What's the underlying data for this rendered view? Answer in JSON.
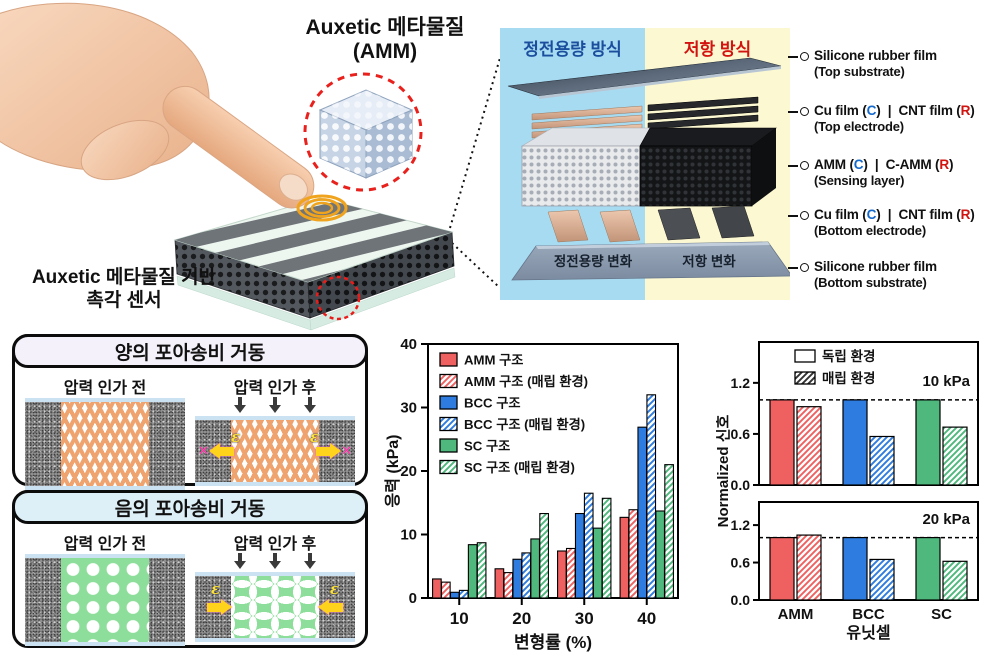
{
  "figure": {
    "hero": {
      "amm_label_line1": "Auxetic 메타물질",
      "amm_label_line2": "(AMM)",
      "caption_line1": "Auxetic 메타물질 기반",
      "caption_line2": "촉각 센서"
    },
    "exploded": {
      "capacitive_header": "정전용량 방식",
      "resistive_header": "저항 방식",
      "capacitive_change_label": "정전용량 변화",
      "resistive_change_label": "저항 변화",
      "capacitive_color": "#1b4f9e",
      "resistive_color": "#d11410",
      "capacitive_bg": "#a7dbf2",
      "resistive_bg": "#fcf8d2",
      "c_marker_color": "#1469cc",
      "r_marker_color": "#d11410",
      "layer_labels": [
        {
          "line1": "Silicone rubber film",
          "line2": "(Top substrate)"
        },
        {
          "line1": "Cu film (C) | CNT film (R)",
          "line2": "(Top electrode)"
        },
        {
          "line1": "AMM (C) | C-AMM (R)",
          "line2": "(Sensing layer)"
        },
        {
          "line1": "Cu film (C) | CNT film (R)",
          "line2": "(Bottom electrode)"
        },
        {
          "line1": "Silicone rubber film",
          "line2": "(Bottom substrate)"
        }
      ]
    },
    "poisson": {
      "panels": [
        {
          "behavior": "positive",
          "title": "양의 포아송비 거동",
          "before_label": "압력 인가 전",
          "after_label": "압력 인가 후",
          "strain_symbol": "ε",
          "x_mark": "✕"
        },
        {
          "behavior": "negative",
          "title": "음의 포아송비 거동",
          "before_label": "압력 인가 전",
          "after_label": "압력 인가 후",
          "strain_symbol": "ε"
        }
      ]
    }
  },
  "chart_data": [
    {
      "type": "bar",
      "title": "",
      "xlabel": "변형률 (%)",
      "ylabel": "응력 (kPa)",
      "ylim": [
        0,
        40
      ],
      "yticks": [
        0,
        10,
        20,
        30,
        40
      ],
      "categories": [
        "10",
        "20",
        "30",
        "40"
      ],
      "grid": false,
      "legend_position": "upper-left",
      "series": [
        {
          "name": "AMM 구조",
          "color": "#ef6161",
          "hatch": false,
          "values": [
            3.0,
            4.6,
            7.4,
            12.7
          ]
        },
        {
          "name": "AMM 구조 (매립 환경)",
          "color": "#ef6161",
          "hatch": true,
          "values": [
            2.5,
            4.0,
            7.8,
            13.9
          ]
        },
        {
          "name": "BCC 구조",
          "color": "#2e7ce0",
          "hatch": false,
          "values": [
            0.9,
            6.1,
            13.3,
            26.9
          ]
        },
        {
          "name": "BCC 구조 (매립 환경)",
          "color": "#2e7ce0",
          "hatch": true,
          "values": [
            1.2,
            7.1,
            16.5,
            32.0
          ]
        },
        {
          "name": "SC 구조",
          "color": "#4eb87d",
          "hatch": false,
          "values": [
            8.4,
            9.3,
            11.0,
            13.7
          ]
        },
        {
          "name": "SC 구조 (매립 환경)",
          "color": "#4eb87d",
          "hatch": true,
          "values": [
            8.7,
            13.3,
            15.7,
            21.0
          ]
        }
      ]
    },
    {
      "type": "bar",
      "xlabel": "유닛셀",
      "ylabel": "Normalized 신호",
      "categories": [
        "AMM",
        "BCC",
        "SC"
      ],
      "unit_colors": {
        "AMM": "#ef6161",
        "BCC": "#2e7ce0",
        "SC": "#4eb87d"
      },
      "legend": [
        "독립 환경",
        "매립 환경"
      ],
      "panels": [
        {
          "label": "10 kPa",
          "ylim": [
            0,
            1.68
          ],
          "yticks": [
            0.0,
            0.6,
            1.2
          ],
          "dashline": 1.0,
          "series": [
            {
              "name": "독립 환경",
              "hatch": false,
              "values": [
                1.0,
                1.0,
                1.0
              ]
            },
            {
              "name": "매립 환경",
              "hatch": true,
              "values": [
                0.92,
                0.57,
                0.68
              ]
            }
          ]
        },
        {
          "label": "20 kPa",
          "ylim": [
            0,
            1.57
          ],
          "yticks": [
            0.0,
            0.6,
            1.2
          ],
          "dashline": 1.0,
          "series": [
            {
              "name": "독립 환경",
              "hatch": false,
              "values": [
                1.0,
                1.0,
                1.0
              ]
            },
            {
              "name": "매립 환경",
              "hatch": true,
              "values": [
                1.04,
                0.65,
                0.62
              ]
            }
          ]
        }
      ]
    }
  ]
}
